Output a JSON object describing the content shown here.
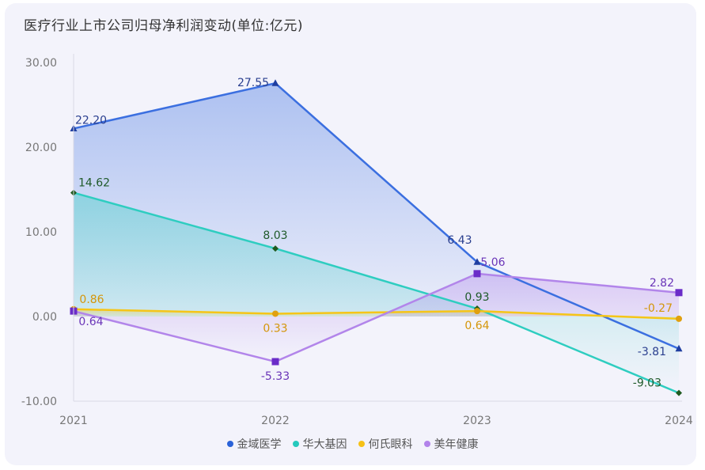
{
  "chart_data": {
    "type": "line",
    "title": "医疗行业上市公司归母净利润变动(单位:亿元)",
    "categories": [
      "2021",
      "2022",
      "2023",
      "2024"
    ],
    "y_ticks": [
      "30.00",
      "20.00",
      "10.00",
      "0.00",
      "-10.00"
    ],
    "ylim": [
      -10,
      30
    ],
    "series": [
      {
        "name": "金域医学",
        "color": "#3b6fe0",
        "marker": "triangle",
        "values": [
          22.2,
          27.55,
          6.43,
          -3.81
        ],
        "labels": [
          "22.20",
          "27.55",
          "6.43",
          "-3.81"
        ],
        "label_color": "#2a3f8f"
      },
      {
        "name": "华大基因",
        "color": "#2ecdc0",
        "marker": "diamond",
        "values": [
          14.62,
          8.03,
          0.93,
          -9.03
        ],
        "labels": [
          "14.62",
          "8.03",
          "0.93",
          "-9.03"
        ],
        "label_color": "#1f5a2a"
      },
      {
        "name": "何氏眼科",
        "color": "#f5c518",
        "marker": "circle",
        "values": [
          0.86,
          0.33,
          0.64,
          -0.27
        ],
        "labels": [
          "0.86",
          "0.33",
          "0.64",
          "-0.27"
        ],
        "label_color": "#d4960a"
      },
      {
        "name": "美年健康",
        "color": "#b285ea",
        "marker": "square",
        "values": [
          0.64,
          -5.33,
          5.06,
          2.82
        ],
        "labels": [
          "0.64",
          "-5.33",
          "5.06",
          "2.82"
        ],
        "label_color": "#6a35b8"
      }
    ]
  }
}
